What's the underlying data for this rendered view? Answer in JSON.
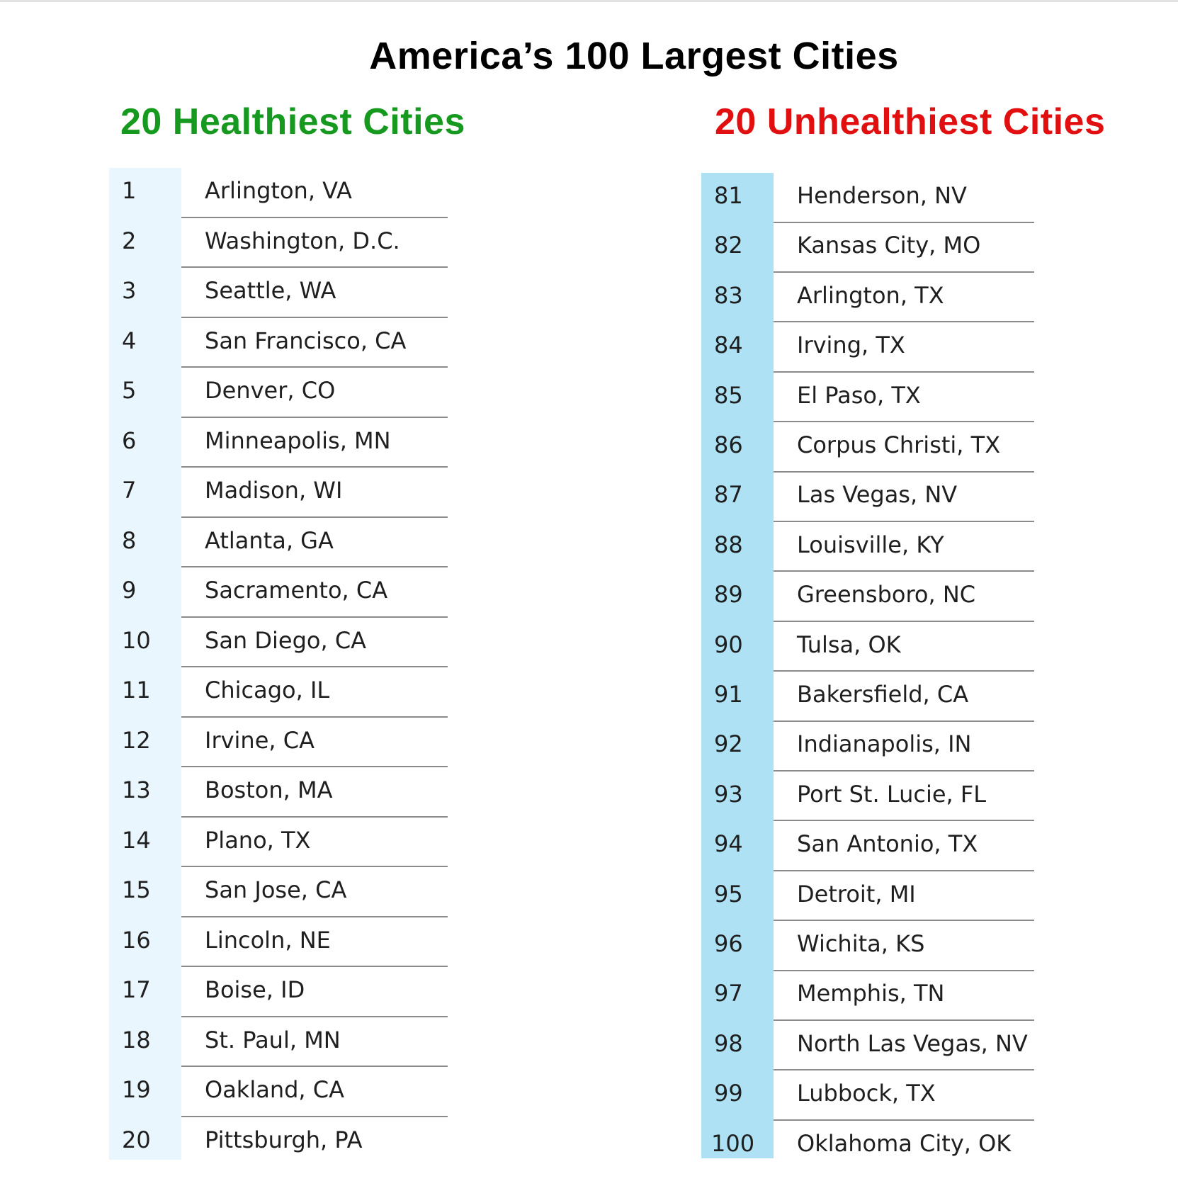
{
  "title": "America’s 100 Largest Cities",
  "healthiest": {
    "heading": "20 Healthiest Cities",
    "rows": [
      {
        "rank": "1",
        "city": "Arlington, VA"
      },
      {
        "rank": "2",
        "city": "Washington, D.C."
      },
      {
        "rank": "3",
        "city": "Seattle, WA"
      },
      {
        "rank": "4",
        "city": "San Francisco, CA"
      },
      {
        "rank": "5",
        "city": "Denver, CO"
      },
      {
        "rank": "6",
        "city": "Minneapolis, MN"
      },
      {
        "rank": "7",
        "city": "Madison, WI"
      },
      {
        "rank": "8",
        "city": "Atlanta, GA"
      },
      {
        "rank": "9",
        "city": "Sacramento, CA"
      },
      {
        "rank": "10",
        "city": "San Diego, CA"
      },
      {
        "rank": "11",
        "city": "Chicago, IL"
      },
      {
        "rank": "12",
        "city": "Irvine, CA"
      },
      {
        "rank": "13",
        "city": "Boston, MA"
      },
      {
        "rank": "14",
        "city": "Plano, TX"
      },
      {
        "rank": "15",
        "city": "San Jose, CA"
      },
      {
        "rank": "16",
        "city": "Lincoln, NE"
      },
      {
        "rank": "17",
        "city": "Boise, ID"
      },
      {
        "rank": "18",
        "city": "St. Paul, MN"
      },
      {
        "rank": "19",
        "city": "Oakland, CA"
      },
      {
        "rank": "20",
        "city": "Pittsburgh, PA"
      }
    ]
  },
  "unhealthiest": {
    "heading": "20 Unhealthiest Cities",
    "rows": [
      {
        "rank": "81",
        "city": "Henderson, NV"
      },
      {
        "rank": "82",
        "city": "Kansas City, MO"
      },
      {
        "rank": "83",
        "city": "Arlington, TX"
      },
      {
        "rank": "84",
        "city": "Irving, TX"
      },
      {
        "rank": "85",
        "city": "El Paso, TX"
      },
      {
        "rank": "86",
        "city": "Corpus Christi, TX"
      },
      {
        "rank": "87",
        "city": "Las Vegas, NV"
      },
      {
        "rank": "88",
        "city": "Louisville, KY"
      },
      {
        "rank": "89",
        "city": "Greensboro, NC"
      },
      {
        "rank": "90",
        "city": "Tulsa, OK"
      },
      {
        "rank": "91",
        "city": "Bakersfield, CA"
      },
      {
        "rank": "92",
        "city": "Indianapolis, IN"
      },
      {
        "rank": "93",
        "city": "Port St. Lucie, FL"
      },
      {
        "rank": "94",
        "city": "San Antonio, TX"
      },
      {
        "rank": "95",
        "city": "Detroit, MI"
      },
      {
        "rank": "96",
        "city": "Wichita, KS"
      },
      {
        "rank": "97",
        "city": "Memphis, TN"
      },
      {
        "rank": "98",
        "city": "North Las Vegas, NV"
      },
      {
        "rank": "99",
        "city": "Lubbock, TX"
      },
      {
        "rank": "100",
        "city": "Oklahoma City, OK"
      }
    ]
  },
  "colors": {
    "healthy_heading": "#159a1f",
    "unhealthy_heading": "#e10f0f",
    "healthy_rank_band": "#eaf6fd",
    "unhealthy_rank_band": "#aee1f3"
  }
}
